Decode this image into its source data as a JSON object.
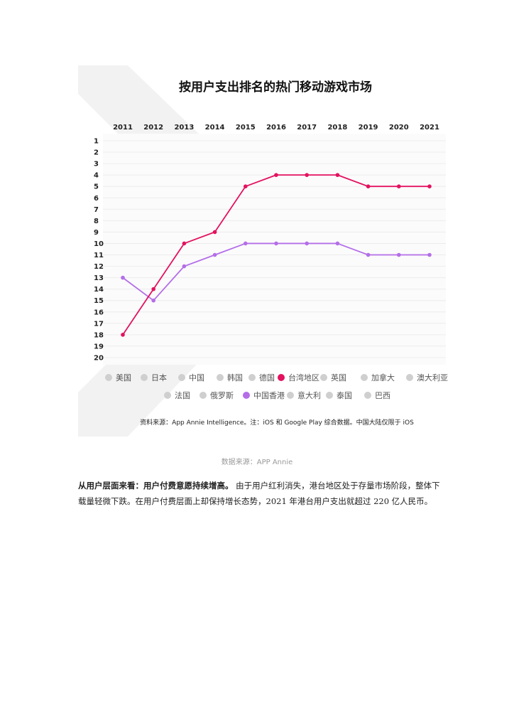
{
  "chart_data": {
    "type": "line",
    "title": "按用户支出排名的热门移动游戏市场",
    "x": [
      "2011",
      "2012",
      "2013",
      "2014",
      "2015",
      "2016",
      "2017",
      "2018",
      "2019",
      "2020",
      "2021"
    ],
    "y_ticks": [
      "1",
      "2",
      "3",
      "4",
      "5",
      "6",
      "7",
      "8",
      "9",
      "10",
      "11",
      "12",
      "13",
      "14",
      "15",
      "16",
      "17",
      "18",
      "19",
      "20"
    ],
    "ylim": [
      1,
      20
    ],
    "y_inverted": true,
    "grid": true,
    "legend_position": "bottom",
    "legend": [
      {
        "name": "美国",
        "color": "#cfcfcf"
      },
      {
        "name": "日本",
        "color": "#cfcfcf"
      },
      {
        "name": "中国",
        "color": "#cfcfcf"
      },
      {
        "name": "韩国",
        "color": "#cfcfcf"
      },
      {
        "name": "德国",
        "color": "#cfcfcf"
      },
      {
        "name": "台湾地区",
        "color": "#e3125f"
      },
      {
        "name": "英国",
        "color": "#cfcfcf"
      },
      {
        "name": "加拿大",
        "color": "#cfcfcf"
      },
      {
        "name": "澳大利亚",
        "color": "#cfcfcf"
      },
      {
        "name": "法国",
        "color": "#cfcfcf"
      },
      {
        "name": "俄罗斯",
        "color": "#cfcfcf"
      },
      {
        "name": "中国香港",
        "color": "#b46ee8"
      },
      {
        "name": "意大利",
        "color": "#cfcfcf"
      },
      {
        "name": "泰国",
        "color": "#cfcfcf"
      },
      {
        "name": "巴西",
        "color": "#cfcfcf"
      }
    ],
    "series": [
      {
        "name": "台湾地区",
        "color": "#e3125f",
        "values": [
          18,
          14,
          10,
          9,
          5,
          4,
          4,
          4,
          5,
          5,
          5
        ]
      },
      {
        "name": "中国香港",
        "color": "#b46ee8",
        "values": [
          13,
          15,
          12,
          11,
          10,
          10,
          10,
          10,
          11,
          11,
          11
        ]
      }
    ],
    "source_note": "资料来源：App Annie Intelligence。注：iOS 和 Google Play 综合数据。中国大陆仅限于 iOS"
  },
  "caption": "数据来源：APP Annie",
  "paragraph": {
    "lead": "从用户层面来看：用户付费意愿持续增高。",
    "body": "由于用户红利消失，港台地区处于存量市场阶段，整体下载量轻微下跌。在用户付费层面上却保持增长态势，2021 年港台用户支出就超过 220 亿人民币。"
  }
}
